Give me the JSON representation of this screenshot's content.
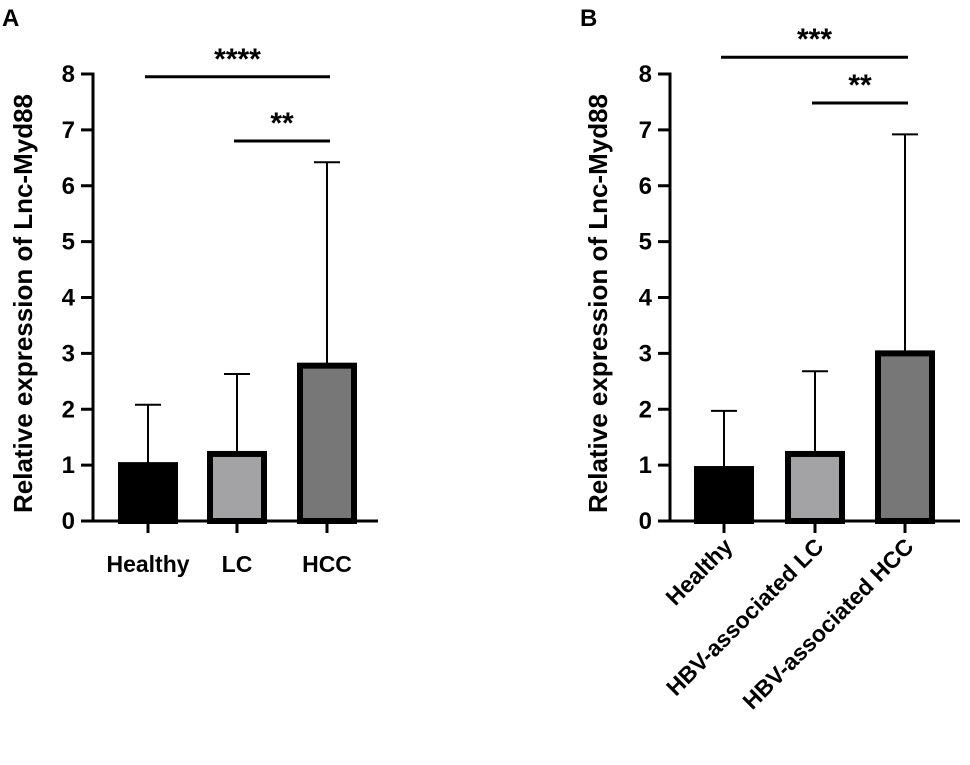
{
  "chart_data": [
    {
      "type": "bar",
      "panel": "A",
      "ylabel": "Relative expression of Lnc-Myd88",
      "ylim": [
        0,
        8
      ],
      "yticks": [
        0,
        1,
        2,
        3,
        4,
        5,
        6,
        7,
        8
      ],
      "categories": [
        "Healthy",
        "LC",
        "HCC"
      ],
      "values": [
        1.0,
        1.2,
        2.78
      ],
      "error_upper": [
        2.08,
        2.63,
        6.42
      ],
      "bar_colors": [
        "#000000",
        "#a3a3a6",
        "#777777"
      ],
      "significance": [
        {
          "from": 0,
          "to": 2,
          "label": "****",
          "y": 7.95
        },
        {
          "from": 1,
          "to": 2,
          "label": "**",
          "y": 6.8
        }
      ]
    },
    {
      "type": "bar",
      "panel": "B",
      "ylabel": "Relative expression of Lnc-Myd88",
      "ylim": [
        0,
        8
      ],
      "yticks": [
        0,
        1,
        2,
        3,
        4,
        5,
        6,
        7,
        8
      ],
      "categories": [
        "Healthy",
        "HBV-associated LC",
        "HBV-associated HCC"
      ],
      "values": [
        0.93,
        1.2,
        3.0
      ],
      "error_upper": [
        1.97,
        2.68,
        6.92
      ],
      "bar_colors": [
        "#000000",
        "#a3a3a6",
        "#777777"
      ],
      "significance": [
        {
          "from": 0,
          "to": 2,
          "label": "***",
          "y": 8.3
        },
        {
          "from": 1,
          "to": 2,
          "label": "**",
          "y": 7.48
        }
      ]
    }
  ]
}
